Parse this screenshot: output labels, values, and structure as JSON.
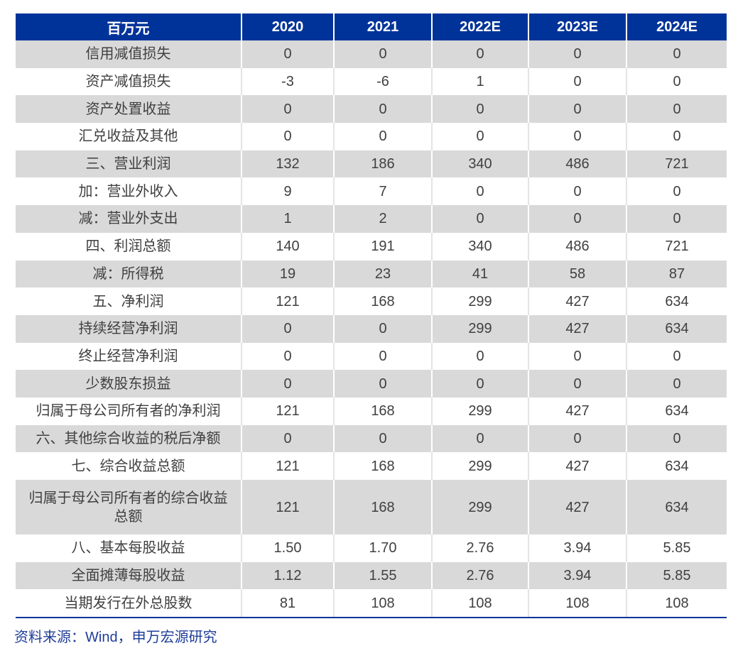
{
  "header": [
    "百万元",
    "2020",
    "2021",
    "2022E",
    "2023E",
    "2024E"
  ],
  "rows": [
    [
      "信用减值损失",
      "0",
      "0",
      "0",
      "0",
      "0"
    ],
    [
      "资产减值损失",
      "-3",
      "-6",
      "1",
      "0",
      "0"
    ],
    [
      "资产处置收益",
      "0",
      "0",
      "0",
      "0",
      "0"
    ],
    [
      "汇兑收益及其他",
      "0",
      "0",
      "0",
      "0",
      "0"
    ],
    [
      "三、营业利润",
      "132",
      "186",
      "340",
      "486",
      "721"
    ],
    [
      "加：营业外收入",
      "9",
      "7",
      "0",
      "0",
      "0"
    ],
    [
      "减：营业外支出",
      "1",
      "2",
      "0",
      "0",
      "0"
    ],
    [
      "四、利润总额",
      "140",
      "191",
      "340",
      "486",
      "721"
    ],
    [
      "减：所得税",
      "19",
      "23",
      "41",
      "58",
      "87"
    ],
    [
      "五、净利润",
      "121",
      "168",
      "299",
      "427",
      "634"
    ],
    [
      "持续经营净利润",
      "0",
      "0",
      "299",
      "427",
      "634"
    ],
    [
      "终止经营净利润",
      "0",
      "0",
      "0",
      "0",
      "0"
    ],
    [
      "少数股东损益",
      "0",
      "0",
      "0",
      "0",
      "0"
    ],
    [
      "归属于母公司所有者的净利润",
      "121",
      "168",
      "299",
      "427",
      "634"
    ],
    [
      "六、其他综合收益的税后净额",
      "0",
      "0",
      "0",
      "0",
      "0"
    ],
    [
      "七、综合收益总额",
      "121",
      "168",
      "299",
      "427",
      "634"
    ],
    [
      "归属于母公司所有者的综合收益总额",
      "121",
      "168",
      "299",
      "427",
      "634"
    ],
    [
      "八、基本每股收益",
      "1.50",
      "1.70",
      "2.76",
      "3.94",
      "5.85"
    ],
    [
      "全面摊薄每股收益",
      "1.12",
      "1.55",
      "2.76",
      "3.94",
      "5.85"
    ],
    [
      "当期发行在外总股数",
      "81",
      "108",
      "108",
      "108",
      "108"
    ]
  ],
  "source": "资料来源：Wind，申万宏源研究",
  "colors": {
    "header_bg": "#003399",
    "stripe": "#d9d9d9",
    "source_text": "#1f3d99"
  }
}
